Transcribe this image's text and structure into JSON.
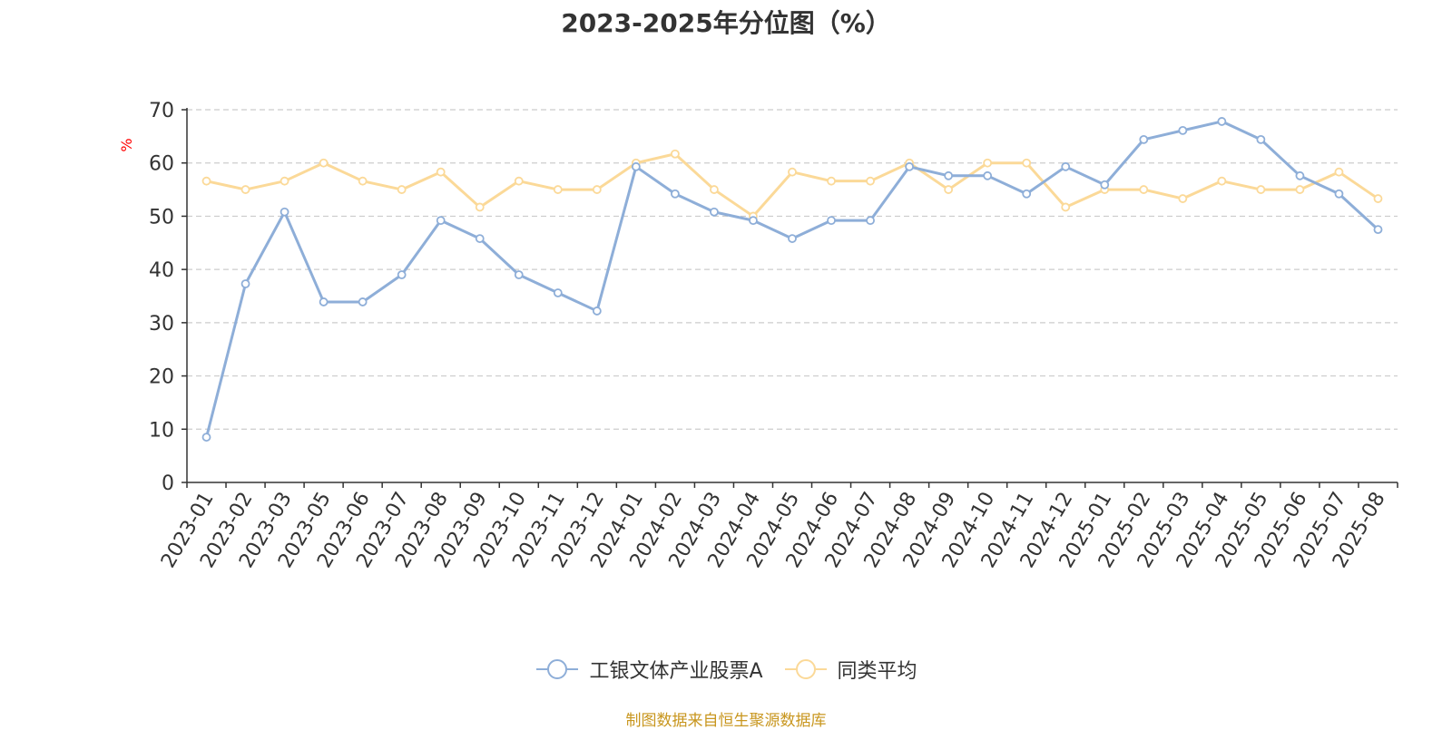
{
  "chart_data": {
    "type": "line",
    "title": "2023-2025年分位图（%）",
    "ylabel": "%",
    "xlabel": "",
    "ylim": [
      0,
      70
    ],
    "yticks": [
      0,
      10,
      20,
      30,
      40,
      50,
      60,
      70
    ],
    "grid": true,
    "legend_position": "bottom",
    "categories": [
      "2023-01",
      "2023-02",
      "2023-03",
      "2023-05",
      "2023-06",
      "2023-07",
      "2023-08",
      "2023-09",
      "2023-10",
      "2023-11",
      "2023-12",
      "2024-01",
      "2024-02",
      "2024-03",
      "2024-04",
      "2024-05",
      "2024-06",
      "2024-07",
      "2024-08",
      "2024-09",
      "2024-10",
      "2024-11",
      "2024-12",
      "2025-01",
      "2025-02",
      "2025-03",
      "2025-04",
      "2025-05",
      "2025-06",
      "2025-07",
      "2025-08"
    ],
    "series": [
      {
        "name": "工银文体产业股票A",
        "color": "#8eaed8",
        "values": [
          8.5,
          37.3,
          50.8,
          33.9,
          33.9,
          39.0,
          49.2,
          45.8,
          39.0,
          35.6,
          32.2,
          59.3,
          54.2,
          50.8,
          49.2,
          45.8,
          49.2,
          49.2,
          59.3,
          57.6,
          57.6,
          54.2,
          59.3,
          55.9,
          64.4,
          66.1,
          67.8,
          64.4,
          57.6,
          54.2,
          47.5
        ]
      },
      {
        "name": "同类平均",
        "color": "#fbd998",
        "values": [
          56.6,
          55.0,
          56.6,
          60.0,
          56.6,
          55.0,
          58.3,
          51.7,
          56.6,
          55.0,
          55.0,
          60.0,
          61.7,
          55.0,
          50.0,
          58.3,
          56.6,
          56.6,
          60.0,
          55.0,
          60.0,
          60.0,
          51.7,
          55.0,
          55.0,
          53.3,
          56.6,
          55.0,
          55.0,
          58.3,
          53.3
        ]
      }
    ]
  },
  "footer": {
    "source_note": "制图数据来自恒生聚源数据库"
  },
  "colors": {
    "title": "#333333",
    "axis": "#333333",
    "grid": "#cccccc",
    "ylabel": "#ff0000",
    "source_note": "#c8961e"
  }
}
